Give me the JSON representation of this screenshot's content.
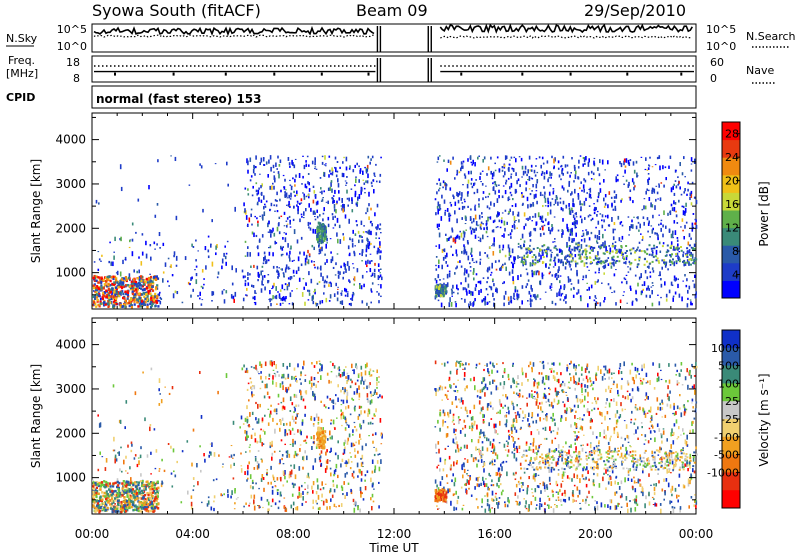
{
  "header": {
    "station": "Syowa South (fitACF)",
    "beam": "Beam 09",
    "date": "29/Sep/2010"
  },
  "strip_labels": {
    "nsky": "N.Sky",
    "nsearch": "N.Search",
    "freq_line1": "Freq.",
    "freq_line2": "[MHz]",
    "nave": "Nave",
    "cpid": "CPID",
    "cpid_value": "normal (fast stereo) 153"
  },
  "colors": {
    "power_scale": [
      "#0000ff",
      "#1e3cc8",
      "#2a5aa8",
      "#3a8a78",
      "#5fb04a",
      "#c8d838",
      "#f0c018",
      "#f08a10",
      "#e83a10",
      "#ff0000"
    ],
    "velocity_scale": [
      "#1030c8",
      "#2a5aa8",
      "#3a8a78",
      "#6cc83a",
      "#c8c8c8",
      "#f0d070",
      "#f0a020",
      "#f07810",
      "#e83010",
      "#ff0000"
    ]
  },
  "chart_data": [
    {
      "type": "line",
      "name": "noise",
      "ylabel_left": "N.Sky",
      "ylabel_right": "N.Search",
      "yticks_left": [
        "10^5",
        "10^0"
      ],
      "yticks_right": [
        "10^5",
        "10^0"
      ],
      "ylim": [
        0,
        5
      ],
      "gap": [
        "11:30",
        "12:30"
      ]
    },
    {
      "type": "line",
      "name": "frequency-nave",
      "ylabel_left": "Freq. [MHz]",
      "ylabel_right": "Nave",
      "yticks_left": [
        "18",
        "8"
      ],
      "yticks_right": [
        "60",
        "0"
      ],
      "ylim_left": [
        8,
        18
      ],
      "ylim_right": [
        0,
        60
      ],
      "freq_mhz": 12,
      "nave_approx": 30
    },
    {
      "type": "heatmap",
      "name": "power",
      "xlabel": "",
      "ylabel": "Slant Range [km]",
      "xlim_hours": [
        0,
        24
      ],
      "ylim": [
        180,
        4600
      ],
      "yticks": [
        "1000",
        "2000",
        "3000",
        "4000"
      ],
      "colorbar_label": "Power [dB]",
      "colorbar_ticks": [
        "4",
        "8",
        "12",
        "16",
        "20",
        "24",
        "28"
      ],
      "colorbar_range": [
        0,
        30
      ],
      "data_gap_hours": [
        11.5,
        13.6
      ]
    },
    {
      "type": "heatmap",
      "name": "velocity",
      "xlabel": "Time UT",
      "ylabel": "Slant Range [km]",
      "xlim_hours": [
        0,
        24
      ],
      "ylim": [
        180,
        4600
      ],
      "xticks": [
        "00:00",
        "04:00",
        "08:00",
        "12:00",
        "16:00",
        "20:00",
        "00:00"
      ],
      "yticks": [
        "1000",
        "2000",
        "3000",
        "4000"
      ],
      "colorbar_label": "Velocity [m s⁻¹]",
      "colorbar_ticks": [
        "1000",
        "500",
        "100",
        "25",
        "-25",
        "-100",
        "-500",
        "-1000"
      ],
      "data_gap_hours": [
        11.5,
        13.6
      ]
    }
  ]
}
